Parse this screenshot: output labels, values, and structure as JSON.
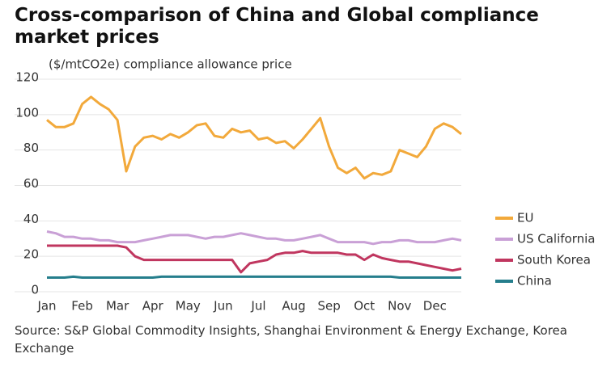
{
  "chart_data": {
    "type": "line",
    "title": "Cross-comparison of China and Global compliance market prices",
    "ylabel": "($/mtCO2e) compliance allowance price",
    "source": "Source: S&P Global Commodity Insights, Shanghai Environment & Energy Exchange, Korea Exchange",
    "categories": [
      "Jan",
      null,
      null,
      null,
      "Feb",
      null,
      null,
      null,
      "Mar",
      null,
      null,
      null,
      "Apr",
      null,
      null,
      null,
      "May",
      null,
      null,
      null,
      "Jun",
      null,
      null,
      null,
      "Jul",
      null,
      null,
      null,
      "Aug",
      null,
      null,
      null,
      "Sep",
      null,
      null,
      null,
      "Oct",
      null,
      null,
      null,
      "Nov",
      null,
      null,
      null,
      "Dec",
      null,
      null,
      null
    ],
    "ylim": [
      0,
      120
    ],
    "yticks": [
      0,
      20,
      40,
      60,
      80,
      100,
      120
    ],
    "grid": true,
    "legend": "right",
    "series": [
      {
        "name": "EU",
        "color": "#f2a93b",
        "values": [
          97,
          93,
          93,
          95,
          106,
          110,
          106,
          103,
          97,
          68,
          82,
          87,
          88,
          86,
          89,
          87,
          90,
          94,
          95,
          88,
          87,
          92,
          90,
          91,
          86,
          87,
          84,
          85,
          81,
          86,
          92,
          98,
          82,
          70,
          67,
          70,
          64,
          67,
          66,
          68,
          80,
          78,
          76,
          82,
          92,
          95,
          93,
          89
        ]
      },
      {
        "name": "US California",
        "color": "#c9a0d6",
        "values": [
          34,
          33,
          31,
          31,
          30,
          30,
          29,
          29,
          28,
          28,
          28,
          29,
          30,
          31,
          32,
          32,
          32,
          31,
          30,
          31,
          31,
          32,
          33,
          32,
          31,
          30,
          30,
          29,
          29,
          30,
          31,
          32,
          30,
          28,
          28,
          28,
          28,
          27,
          28,
          28,
          29,
          29,
          28,
          28,
          28,
          29,
          30,
          29
        ]
      },
      {
        "name": "South Korea",
        "color": "#c0365f",
        "values": [
          26,
          26,
          26,
          26,
          26,
          26,
          26,
          26,
          26,
          25,
          20,
          18,
          18,
          18,
          18,
          18,
          18,
          18,
          18,
          18,
          18,
          18,
          11,
          16,
          17,
          18,
          21,
          22,
          22,
          23,
          22,
          22,
          22,
          22,
          21,
          21,
          18,
          21,
          19,
          18,
          17,
          17,
          16,
          15,
          14,
          13,
          12,
          13
        ]
      },
      {
        "name": "China",
        "color": "#257e8c",
        "values": [
          8,
          8,
          8,
          8.5,
          8,
          8,
          8,
          8,
          8,
          8,
          8,
          8,
          8,
          8.5,
          8.5,
          8.5,
          8.5,
          8.5,
          8.5,
          8.5,
          8.5,
          8.5,
          8.5,
          8.5,
          8.5,
          8.5,
          8.5,
          8.5,
          8.5,
          8.5,
          8.5,
          8.5,
          8.5,
          8.5,
          8.5,
          8.5,
          8.5,
          8.5,
          8.5,
          8.5,
          8,
          8,
          8,
          8,
          8,
          8,
          8,
          8
        ]
      }
    ]
  }
}
